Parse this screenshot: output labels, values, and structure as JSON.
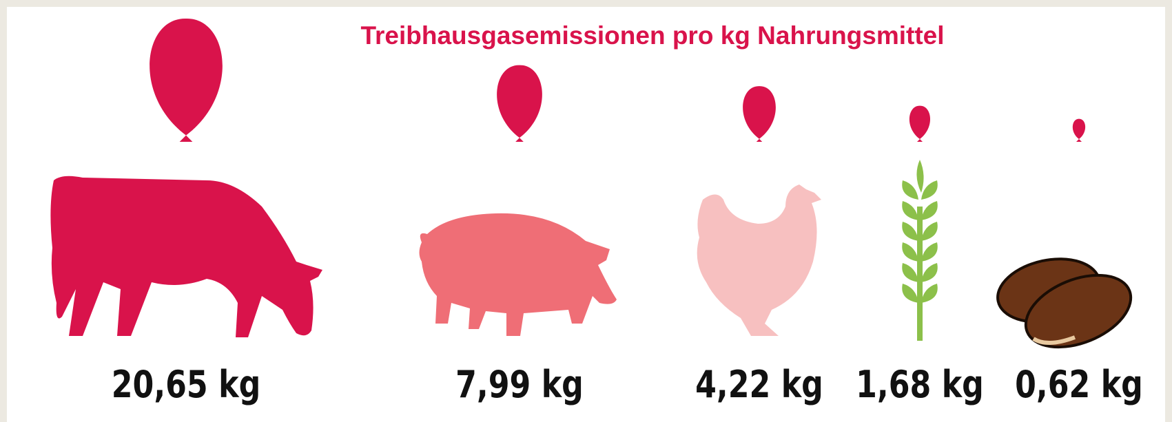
{
  "chart_data": {
    "type": "balloon",
    "title": "Treibhausgasemissionen pro kg Nahrungsmittel",
    "values": [
      20.65,
      7.99,
      4.22,
      1.68,
      0.62
    ],
    "value_labels": [
      "20,65 kg",
      "7,99 kg",
      "4,22 kg",
      "1,68 kg",
      "0,62 kg"
    ],
    "color": "#d9134b"
  }
}
